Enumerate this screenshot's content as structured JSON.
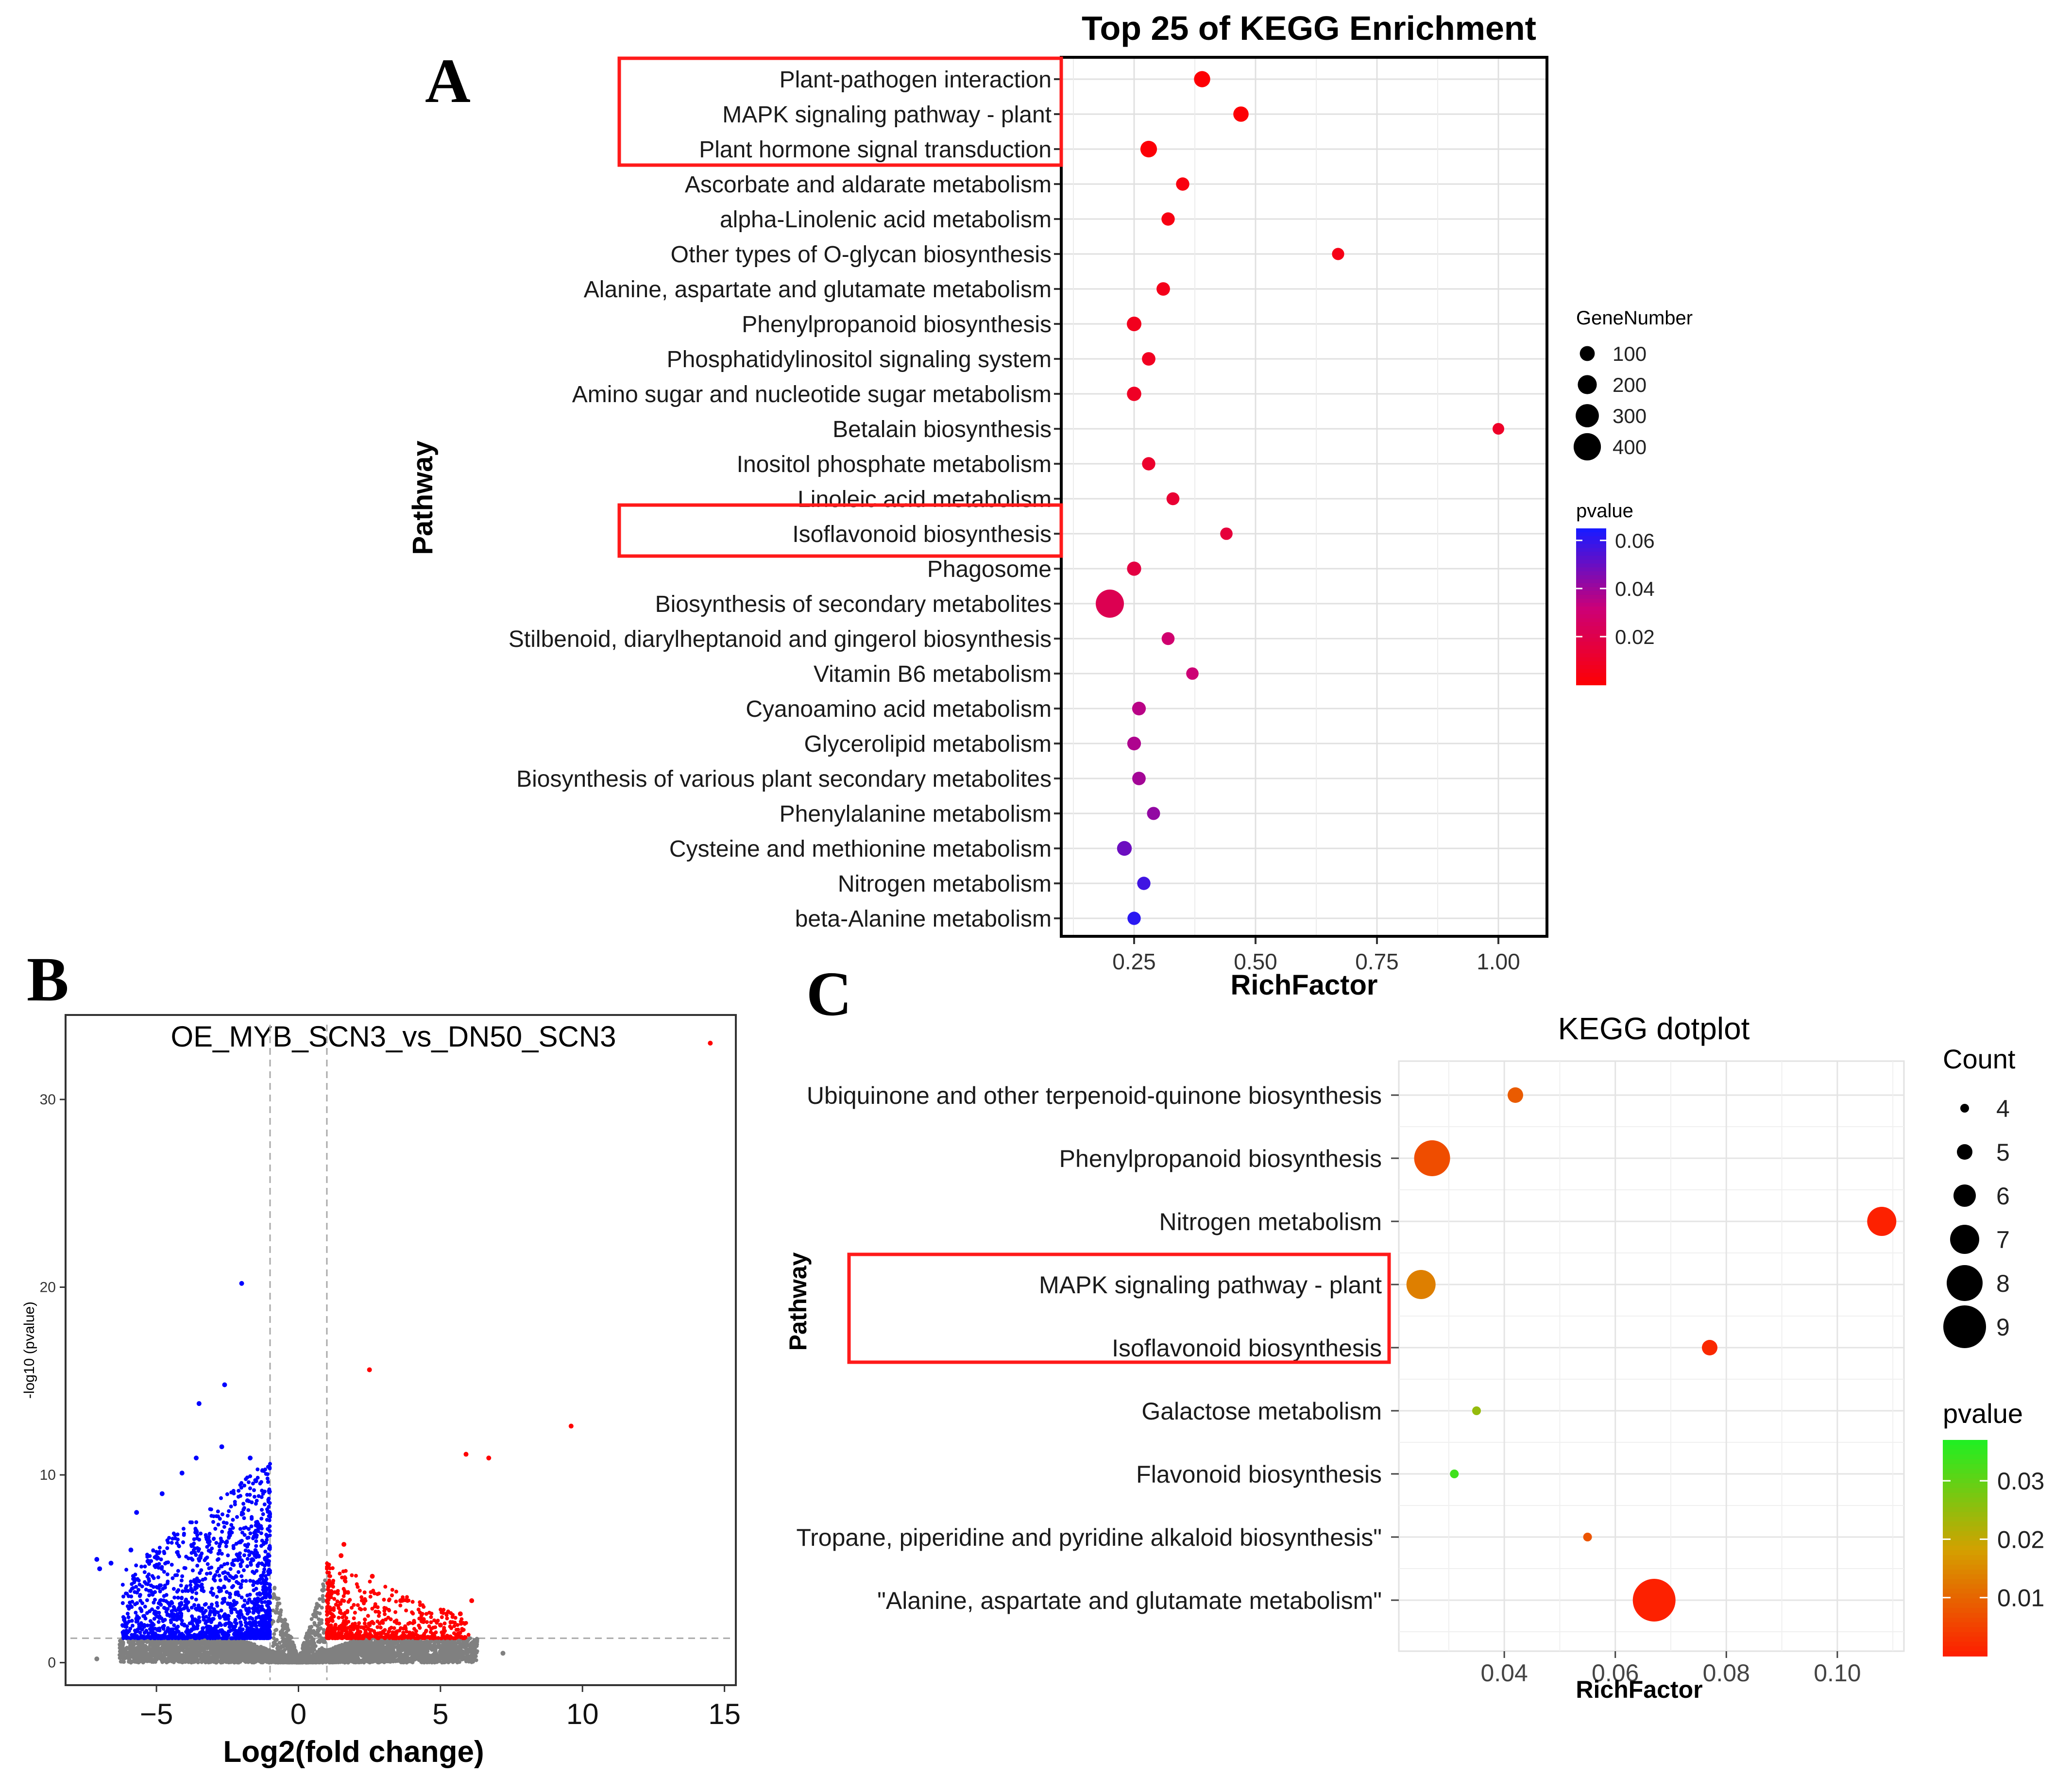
{
  "panel_labels": {
    "a": "A",
    "b": "B",
    "c": "C"
  },
  "chart_data": [
    {
      "id": "A",
      "type": "scatter",
      "title": "Top 25 of KEGG Enrichment",
      "xlabel": "RichFactor",
      "ylabel": "Pathway",
      "xlim": [
        0.1,
        1.1
      ],
      "xticks": [
        0.25,
        0.5,
        0.75,
        1.0
      ],
      "xtick_labels": [
        "0.25",
        "0.50",
        "0.75",
        "1.00"
      ],
      "grid": true,
      "legend_size_title": "GeneNumber",
      "legend_size_values": [
        100,
        200,
        300,
        400
      ],
      "legend_color_title": "pvalue",
      "legend_color_ticks": [
        "0.06",
        "0.04",
        "0.02"
      ],
      "color_scale": {
        "low": "#ff0000",
        "mid": "#cc0077",
        "high": "#1a1aff",
        "min": 0.0,
        "max": 0.065
      },
      "highlighted": [
        "Plant-pathogen interaction",
        "MAPK signaling pathway - plant",
        "Plant hormone signal transduction",
        "Isoflavonoid biosynthesis"
      ],
      "points": [
        {
          "pathway": "Plant-pathogen interaction",
          "rich_factor": 0.39,
          "gene_number": 130,
          "pvalue": 0.001
        },
        {
          "pathway": "MAPK signaling pathway - plant",
          "rich_factor": 0.47,
          "gene_number": 110,
          "pvalue": 0.001
        },
        {
          "pathway": "Plant hormone signal transduction",
          "rich_factor": 0.28,
          "gene_number": 140,
          "pvalue": 0.002
        },
        {
          "pathway": "Ascorbate and aldarate metabolism",
          "rich_factor": 0.35,
          "gene_number": 60,
          "pvalue": 0.004
        },
        {
          "pathway": "alpha-Linolenic acid metabolism",
          "rich_factor": 0.32,
          "gene_number": 60,
          "pvalue": 0.005
        },
        {
          "pathway": "Other types of O-glycan biosynthesis",
          "rich_factor": 0.67,
          "gene_number": 35,
          "pvalue": 0.006
        },
        {
          "pathway": "Alanine, aspartate and glutamate metabolism",
          "rich_factor": 0.31,
          "gene_number": 65,
          "pvalue": 0.007
        },
        {
          "pathway": "Phenylpropanoid biosynthesis",
          "rich_factor": 0.25,
          "gene_number": 90,
          "pvalue": 0.008
        },
        {
          "pathway": "Phosphatidylinositol signaling system",
          "rich_factor": 0.28,
          "gene_number": 65,
          "pvalue": 0.009
        },
        {
          "pathway": "Amino sugar and nucleotide sugar metabolism",
          "rich_factor": 0.25,
          "gene_number": 85,
          "pvalue": 0.01
        },
        {
          "pathway": "Betalain biosynthesis",
          "rich_factor": 1.0,
          "gene_number": 20,
          "pvalue": 0.011
        },
        {
          "pathway": "Inositol phosphate metabolism",
          "rich_factor": 0.28,
          "gene_number": 60,
          "pvalue": 0.012
        },
        {
          "pathway": "Linoleic acid metabolism",
          "rich_factor": 0.33,
          "gene_number": 50,
          "pvalue": 0.014
        },
        {
          "pathway": "Isoflavonoid biosynthesis",
          "rich_factor": 0.44,
          "gene_number": 40,
          "pvalue": 0.016
        },
        {
          "pathway": "Phagosome",
          "rich_factor": 0.25,
          "gene_number": 80,
          "pvalue": 0.018
        },
        {
          "pathway": "Biosynthesis of secondary metabolites",
          "rich_factor": 0.2,
          "gene_number": 420,
          "pvalue": 0.022
        },
        {
          "pathway": "Stilbenoid, diarylheptanoid and gingerol biosynthesis",
          "rich_factor": 0.32,
          "gene_number": 50,
          "pvalue": 0.03
        },
        {
          "pathway": "Vitamin B6 metabolism",
          "rich_factor": 0.37,
          "gene_number": 40,
          "pvalue": 0.032
        },
        {
          "pathway": "Cyanoamino acid metabolism",
          "rich_factor": 0.26,
          "gene_number": 70,
          "pvalue": 0.036
        },
        {
          "pathway": "Glycerolipid metabolism",
          "rich_factor": 0.25,
          "gene_number": 70,
          "pvalue": 0.038
        },
        {
          "pathway": "Biosynthesis of various plant secondary metabolites",
          "rich_factor": 0.26,
          "gene_number": 65,
          "pvalue": 0.04
        },
        {
          "pathway": "Phenylalanine metabolism",
          "rich_factor": 0.29,
          "gene_number": 55,
          "pvalue": 0.043
        },
        {
          "pathway": "Cysteine and methionine metabolism",
          "rich_factor": 0.23,
          "gene_number": 95,
          "pvalue": 0.05
        },
        {
          "pathway": "Nitrogen metabolism",
          "rich_factor": 0.27,
          "gene_number": 60,
          "pvalue": 0.058
        },
        {
          "pathway": "beta-Alanine metabolism",
          "rich_factor": 0.25,
          "gene_number": 60,
          "pvalue": 0.062
        }
      ]
    },
    {
      "id": "B",
      "type": "scatter",
      "title": "OE_MYB_SCN3_vs_DN50_SCN3",
      "xlabel": "Log2(fold change)",
      "ylabel": "-log10 (pvalue)",
      "xlim": [
        -8.2,
        15.4
      ],
      "ylim": [
        -1.2,
        34.5
      ],
      "xticks": [
        -5,
        0,
        5,
        10,
        15
      ],
      "xtick_labels": [
        "−5",
        "0",
        "5",
        "10",
        "15"
      ],
      "yticks": [
        0,
        10,
        20,
        30
      ],
      "ytick_labels": [
        "0",
        "10",
        "20",
        "30"
      ],
      "threshold_log2fc": [
        -1,
        1
      ],
      "threshold_neglog10p": 1.3,
      "colors": {
        "up": "#ff0000",
        "down": "#0000ff",
        "ns": "#808080"
      },
      "notable_points": [
        {
          "x": 14.5,
          "y": 33.0,
          "group": "up"
        },
        {
          "x": -2.0,
          "y": 20.2,
          "group": "down"
        },
        {
          "x": 2.5,
          "y": 15.6,
          "group": "up"
        },
        {
          "x": -2.6,
          "y": 14.8,
          "group": "down"
        },
        {
          "x": -3.5,
          "y": 13.8,
          "group": "down"
        },
        {
          "x": 9.6,
          "y": 12.6,
          "group": "up"
        },
        {
          "x": 5.9,
          "y": 11.1,
          "group": "up"
        },
        {
          "x": 6.7,
          "y": 10.9,
          "group": "up"
        },
        {
          "x": -2.7,
          "y": 11.5,
          "group": "down"
        },
        {
          "x": -3.6,
          "y": 10.9,
          "group": "down"
        },
        {
          "x": -1.7,
          "y": 10.9,
          "group": "down"
        },
        {
          "x": -4.1,
          "y": 10.1,
          "group": "down"
        },
        {
          "x": -7.1,
          "y": 5.5,
          "group": "down"
        },
        {
          "x": -7.0,
          "y": 5.0,
          "group": "down"
        },
        {
          "x": -6.6,
          "y": 5.3,
          "group": "down"
        },
        {
          "x": -5.9,
          "y": 6.0,
          "group": "down"
        },
        {
          "x": -5.7,
          "y": 8.0,
          "group": "down"
        },
        {
          "x": -5.3,
          "y": 5.4,
          "group": "down"
        },
        {
          "x": -4.8,
          "y": 9.0,
          "group": "down"
        },
        {
          "x": 2.6,
          "y": 4.6,
          "group": "up"
        },
        {
          "x": 1.6,
          "y": 6.3,
          "group": "up"
        },
        {
          "x": 1.5,
          "y": 5.7,
          "group": "up"
        },
        {
          "x": 3.6,
          "y": 3.3,
          "group": "up"
        },
        {
          "x": 4.4,
          "y": 2.3,
          "group": "up"
        },
        {
          "x": 5.7,
          "y": 2.6,
          "group": "up"
        },
        {
          "x": 6.1,
          "y": 3.3,
          "group": "up"
        },
        {
          "x": 5.0,
          "y": 2.0,
          "group": "up"
        },
        {
          "x": 7.2,
          "y": 0.5,
          "group": "ns"
        },
        {
          "x": -7.1,
          "y": 0.2,
          "group": "ns"
        }
      ]
    },
    {
      "id": "C",
      "type": "scatter",
      "title": "KEGG dotplot",
      "xlabel": "RichFactor",
      "ylabel": "Pathway",
      "xlim": [
        0.021,
        0.112
      ],
      "xticks": [
        0.04,
        0.06,
        0.08,
        0.1
      ],
      "xtick_labels": [
        "0.04",
        "0.06",
        "0.08",
        "0.10"
      ],
      "grid": true,
      "legend_size_title": "Count",
      "legend_size_values": [
        4,
        5,
        6,
        7,
        8,
        9
      ],
      "legend_color_title": "pvalue",
      "legend_color_ticks": [
        "0.03",
        "0.02",
        "0.01"
      ],
      "color_scale": {
        "low": "#ff1a00",
        "mid": "#d4a000",
        "high": "#22ee22",
        "min": 0.0,
        "max": 0.037
      },
      "highlighted": [
        "MAPK signaling pathway - plant",
        "Isoflavonoid biosynthesis"
      ],
      "points": [
        {
          "pathway": "Ubiquinone and other terpenoid-quinone biosynthesis",
          "rich_factor": 0.042,
          "count": 5,
          "pvalue": 0.009
        },
        {
          "pathway": "Phenylpropanoid biosynthesis",
          "rich_factor": 0.027,
          "count": 8,
          "pvalue": 0.007
        },
        {
          "pathway": "Nitrogen metabolism",
          "rich_factor": 0.108,
          "count": 7,
          "pvalue": 0.001
        },
        {
          "pathway": "MAPK signaling pathway - plant",
          "rich_factor": 0.025,
          "count": 7,
          "pvalue": 0.014
        },
        {
          "pathway": "Isoflavonoid biosynthesis",
          "rich_factor": 0.077,
          "count": 5,
          "pvalue": 0.002
        },
        {
          "pathway": "Galactose metabolism",
          "rich_factor": 0.035,
          "count": 4,
          "pvalue": 0.025
        },
        {
          "pathway": "Flavonoid biosynthesis",
          "rich_factor": 0.031,
          "count": 4,
          "pvalue": 0.034
        },
        {
          "pathway": "Tropane, piperidine and pyridine alkaloid biosynthesis\"",
          "rich_factor": 0.055,
          "count": 4,
          "pvalue": 0.008
        },
        {
          "pathway": "\"Alanine, aspartate and glutamate metabolism\"",
          "rich_factor": 0.067,
          "count": 9,
          "pvalue": 0.001
        }
      ]
    }
  ]
}
